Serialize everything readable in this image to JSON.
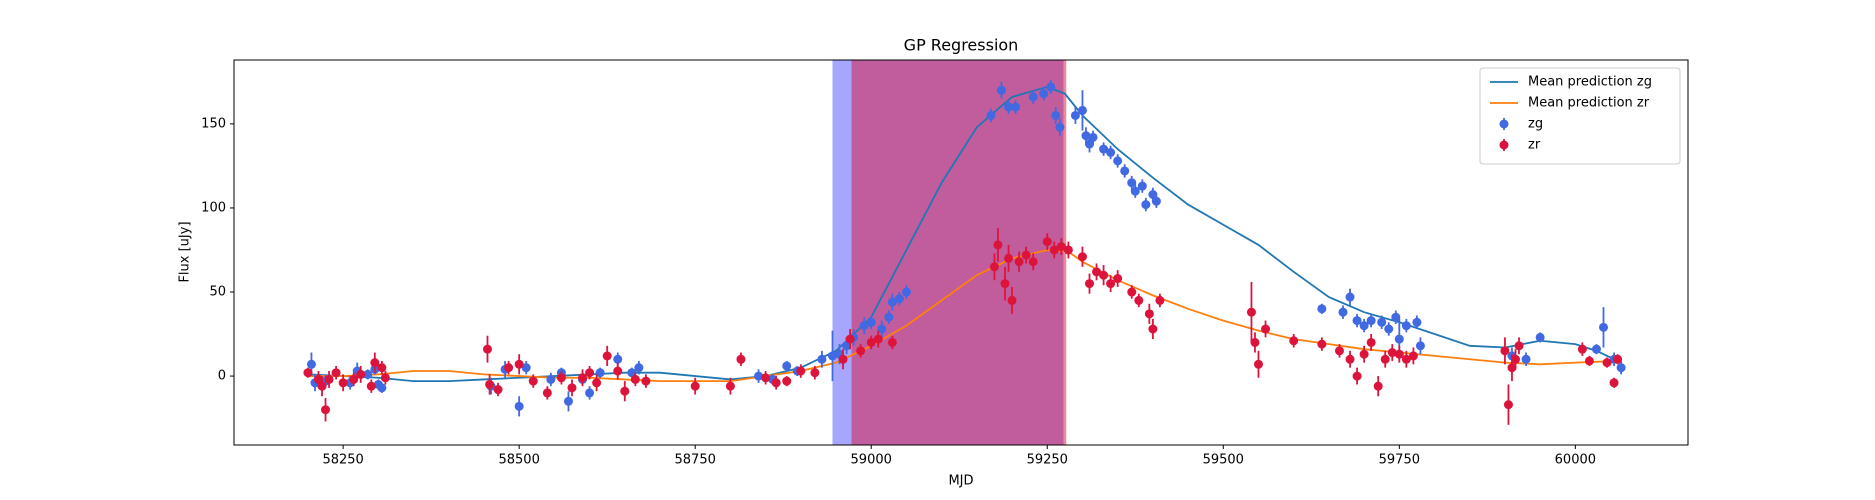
{
  "chart_data": {
    "type": "line",
    "title": "GP Regression",
    "x_label": "MJD",
    "y_label": "Flux [uJy]",
    "xlim": [
      58095,
      60160
    ],
    "ylim": [
      -41,
      188
    ],
    "xticks": [
      58250,
      58500,
      58750,
      59000,
      59250,
      59500,
      59750,
      60000
    ],
    "yticks": [
      0,
      50,
      100,
      150
    ],
    "legend": "upper right",
    "spans": [
      {
        "xmin": 58945,
        "xmax": 59273,
        "color": "#0000ff",
        "alpha": 0.35
      },
      {
        "xmin": 58972,
        "xmax": 59277,
        "color": "#dc143c",
        "alpha": 0.5
      }
    ],
    "series": [
      {
        "name": "Mean prediction zg",
        "type": "line",
        "color": "#1f77b4",
        "x": [
          58200,
          58250,
          58300,
          58350,
          58400,
          58450,
          58500,
          58550,
          58600,
          58650,
          58700,
          58750,
          58800,
          58850,
          58900,
          58950,
          59000,
          59050,
          59100,
          59150,
          59200,
          59250,
          59275,
          59300,
          59350,
          59400,
          59450,
          59500,
          59550,
          59600,
          59650,
          59700,
          59750,
          59800,
          59850,
          59900,
          59950,
          60000,
          60030,
          60060
        ],
        "values": [
          1,
          0,
          -1,
          -3,
          -3,
          -2,
          -1,
          0,
          1,
          2,
          2,
          0,
          -2,
          0,
          5,
          15,
          35,
          75,
          115,
          148,
          166,
          172,
          168,
          155,
          135,
          118,
          102,
          90,
          78,
          62,
          47,
          38,
          32,
          25,
          18,
          17,
          21,
          19,
          15,
          9
        ]
      },
      {
        "name": "Mean prediction zr",
        "type": "line",
        "color": "#ff7f0e",
        "x": [
          58200,
          58250,
          58300,
          58350,
          58400,
          58450,
          58500,
          58550,
          58600,
          58650,
          58700,
          58750,
          58800,
          58850,
          58900,
          58950,
          59000,
          59050,
          59100,
          59150,
          59200,
          59250,
          59280,
          59300,
          59350,
          59400,
          59450,
          59500,
          59550,
          59600,
          59650,
          59700,
          59750,
          59800,
          59850,
          59900,
          59950,
          60000,
          60060
        ],
        "values": [
          0,
          0,
          1,
          3,
          3,
          1,
          0,
          -1,
          -1,
          -2,
          -3,
          -3,
          -3,
          0,
          3,
          8,
          18,
          30,
          45,
          60,
          70,
          75,
          74,
          68,
          57,
          48,
          40,
          33,
          27,
          22,
          19,
          16,
          14,
          12,
          10,
          8,
          7,
          8,
          9
        ]
      },
      {
        "name": "zg",
        "type": "errorbar",
        "color": "#4169e1",
        "x": [
          58205,
          58210,
          58225,
          58260,
          58270,
          58285,
          58295,
          58300,
          58305,
          58460,
          58480,
          58500,
          58510,
          58545,
          58560,
          58570,
          58590,
          58600,
          58615,
          58640,
          58660,
          58670,
          58840,
          58860,
          58880,
          58895,
          58930,
          58945,
          58955,
          58965,
          58975,
          58990,
          59000,
          59015,
          59025,
          59030,
          59040,
          59050,
          59170,
          59185,
          59195,
          59205,
          59230,
          59245,
          59255,
          59262,
          59268,
          59290,
          59300,
          59305,
          59310,
          59315,
          59330,
          59340,
          59350,
          59360,
          59370,
          59375,
          59385,
          59390,
          59400,
          59405,
          59640,
          59670,
          59680,
          59690,
          59700,
          59710,
          59725,
          59735,
          59745,
          59750,
          59760,
          59775,
          59780,
          59910,
          59930,
          59950,
          60030,
          60040,
          60055,
          60065
        ],
        "values": [
          7,
          -4,
          -3,
          -4,
          3,
          1,
          4,
          -5,
          -7,
          -6,
          4,
          -18,
          5,
          -2,
          2,
          -15,
          -2,
          -10,
          2,
          10,
          2,
          5,
          0,
          -2,
          6,
          3,
          10,
          12,
          13,
          18,
          23,
          30,
          32,
          28,
          35,
          44,
          46,
          50,
          155,
          170,
          160,
          160,
          166,
          168,
          172,
          155,
          148,
          155,
          158,
          143,
          138,
          142,
          135,
          133,
          128,
          122,
          115,
          110,
          113,
          102,
          108,
          104,
          40,
          38,
          47,
          33,
          30,
          33,
          32,
          28,
          35,
          22,
          30,
          32,
          18,
          12,
          10,
          23,
          16,
          29,
          10,
          5
        ],
        "errors": [
          7,
          5,
          4,
          4,
          5,
          3,
          3,
          3,
          3,
          5,
          5,
          6,
          4,
          4,
          3,
          6,
          3,
          4,
          3,
          4,
          3,
          4,
          4,
          3,
          3,
          3,
          5,
          15,
          6,
          5,
          5,
          5,
          4,
          5,
          4,
          5,
          4,
          4,
          4,
          5,
          4,
          4,
          4,
          4,
          4,
          5,
          5,
          5,
          12,
          5,
          5,
          4,
          4,
          4,
          4,
          4,
          4,
          4,
          4,
          4,
          4,
          4,
          3,
          4,
          5,
          4,
          4,
          4,
          4,
          4,
          4,
          12,
          4,
          4,
          5,
          5,
          4,
          3,
          3,
          12,
          4,
          4
        ]
      },
      {
        "name": "zr",
        "type": "errorbar",
        "color": "#dc143c",
        "x": [
          58200,
          58215,
          58220,
          58225,
          58230,
          58240,
          58250,
          58265,
          58275,
          58290,
          58295,
          58305,
          58310,
          58455,
          58458,
          58470,
          58485,
          58500,
          58520,
          58540,
          58560,
          58575,
          58590,
          58600,
          58610,
          58625,
          58640,
          58650,
          58665,
          58680,
          58750,
          58800,
          58815,
          58850,
          58865,
          58880,
          58900,
          58920,
          58960,
          58970,
          58985,
          59000,
          59010,
          59030,
          59175,
          59180,
          59190,
          59195,
          59200,
          59210,
          59220,
          59230,
          59250,
          59260,
          59270,
          59280,
          59300,
          59310,
          59320,
          59330,
          59340,
          59350,
          59370,
          59380,
          59395,
          59400,
          59410,
          59540,
          59545,
          59550,
          59560,
          59600,
          59640,
          59665,
          59680,
          59690,
          59700,
          59710,
          59720,
          59730,
          59740,
          59750,
          59760,
          59770,
          59900,
          59905,
          59910,
          59915,
          59920,
          60010,
          60020,
          60045,
          60055,
          60060
        ],
        "values": [
          2,
          -2,
          -6,
          -20,
          -2,
          2,
          -4,
          -2,
          1,
          -6,
          8,
          5,
          -1,
          16,
          -5,
          -8,
          5,
          7,
          -3,
          -10,
          -1,
          -7,
          -1,
          2,
          -4,
          12,
          3,
          -9,
          -2,
          -3,
          -6,
          -6,
          10,
          -1,
          -4,
          -3,
          3,
          2,
          10,
          22,
          15,
          20,
          22,
          20,
          65,
          78,
          55,
          70,
          45,
          68,
          72,
          68,
          80,
          75,
          77,
          75,
          71,
          55,
          62,
          60,
          55,
          58,
          50,
          45,
          37,
          28,
          45,
          38,
          20,
          7,
          28,
          21,
          19,
          15,
          10,
          0,
          13,
          20,
          -6,
          10,
          14,
          13,
          10,
          12,
          15,
          -17,
          5,
          10,
          18,
          16,
          9,
          8,
          -4,
          10
        ],
        "errors": [
          3,
          5,
          6,
          7,
          5,
          4,
          5,
          4,
          5,
          4,
          6,
          4,
          4,
          8,
          6,
          4,
          4,
          6,
          4,
          4,
          4,
          5,
          5,
          4,
          5,
          6,
          5,
          6,
          4,
          4,
          5,
          5,
          4,
          4,
          4,
          3,
          4,
          4,
          6,
          6,
          4,
          4,
          5,
          4,
          8,
          10,
          10,
          8,
          8,
          6,
          5,
          5,
          5,
          5,
          5,
          5,
          6,
          6,
          5,
          6,
          5,
          5,
          4,
          4,
          6,
          6,
          4,
          18,
          6,
          8,
          5,
          4,
          4,
          4,
          5,
          5,
          5,
          5,
          6,
          5,
          5,
          5,
          5,
          5,
          8,
          12,
          8,
          6,
          5,
          4,
          3,
          3,
          3,
          3
        ]
      }
    ]
  }
}
